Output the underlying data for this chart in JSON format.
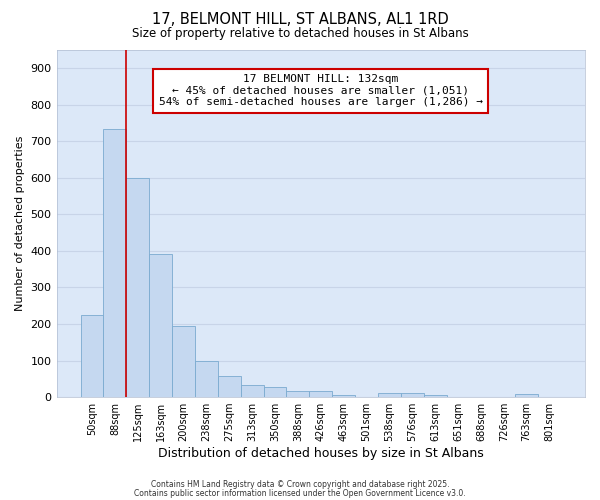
{
  "title": "17, BELMONT HILL, ST ALBANS, AL1 1RD",
  "subtitle": "Size of property relative to detached houses in St Albans",
  "xlabel": "Distribution of detached houses by size in St Albans",
  "ylabel": "Number of detached properties",
  "bar_labels": [
    "50sqm",
    "88sqm",
    "125sqm",
    "163sqm",
    "200sqm",
    "238sqm",
    "275sqm",
    "313sqm",
    "350sqm",
    "388sqm",
    "426sqm",
    "463sqm",
    "501sqm",
    "538sqm",
    "576sqm",
    "613sqm",
    "651sqm",
    "688sqm",
    "726sqm",
    "763sqm",
    "801sqm"
  ],
  "bar_values": [
    225,
    735,
    600,
    393,
    195,
    100,
    57,
    32,
    27,
    18,
    18,
    5,
    0,
    12,
    12,
    5,
    0,
    0,
    0,
    8,
    0
  ],
  "bar_color": "#c5d8f0",
  "bar_edge_color": "#7aaad0",
  "ylim": [
    0,
    950
  ],
  "yticks": [
    0,
    100,
    200,
    300,
    400,
    500,
    600,
    700,
    800,
    900
  ],
  "vline_color": "#cc0000",
  "vline_x": 1.5,
  "annotation_text": "17 BELMONT HILL: 132sqm\n← 45% of detached houses are smaller (1,051)\n54% of semi-detached houses are larger (1,286) →",
  "annotation_box_color": "#ffffff",
  "annotation_box_edge": "#cc0000",
  "grid_color": "#c8d4e8",
  "bg_color": "#dce8f8",
  "fig_bg_color": "#ffffff",
  "footnote1": "Contains HM Land Registry data © Crown copyright and database right 2025.",
  "footnote2": "Contains public sector information licensed under the Open Government Licence v3.0."
}
